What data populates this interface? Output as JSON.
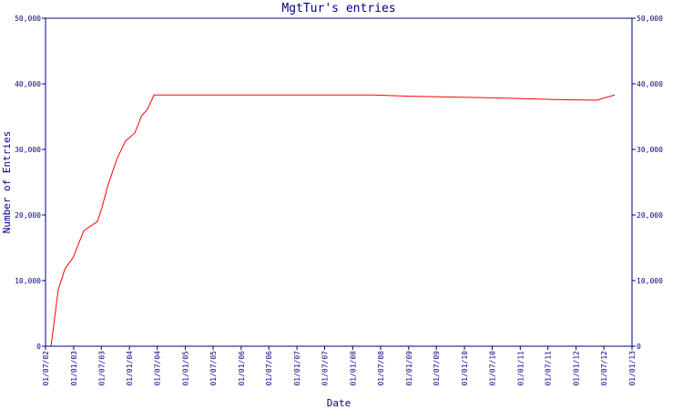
{
  "chart_data": {
    "type": "line",
    "title": "MgtTur's entries",
    "xlabel": "Date",
    "ylabel": "Number of Entries",
    "color": "#ff0000",
    "x": [
      "2002-08-06",
      "2002-09-22",
      "2002-11-05",
      "2002-12-28",
      "2003-03-08",
      "2003-06-05",
      "2003-07-05",
      "2003-08-10",
      "2003-10-10",
      "2003-12-05",
      "2004-02-05",
      "2004-03-20",
      "2004-04-27",
      "2004-06-10",
      "2008-05-15",
      "2009-01-10",
      "2010-04-28",
      "2010-10-28",
      "2011-08-18",
      "2012-05-14",
      "2012-09-10"
    ],
    "values": [
      0,
      8600,
      11800,
      13500,
      17600,
      19000,
      21100,
      24300,
      28500,
      31250,
      32500,
      35100,
      36100,
      38300,
      38300,
      38100,
      37900,
      37800,
      37600,
      37500,
      38300
    ],
    "xlim": [
      "2002-07-01",
      "2013-01-01"
    ],
    "xticks": [
      {
        "value": "2002-07-01",
        "label": "01/07/02"
      },
      {
        "value": "2003-01-01",
        "label": "01/01/03"
      },
      {
        "value": "2003-07-01",
        "label": "01/07/03"
      },
      {
        "value": "2004-01-01",
        "label": "01/01/04"
      },
      {
        "value": "2004-07-01",
        "label": "01/07/04"
      },
      {
        "value": "2005-01-01",
        "label": "01/01/05"
      },
      {
        "value": "2005-07-01",
        "label": "01/07/05"
      },
      {
        "value": "2006-01-01",
        "label": "01/01/06"
      },
      {
        "value": "2006-07-01",
        "label": "01/07/06"
      },
      {
        "value": "2007-01-01",
        "label": "01/01/07"
      },
      {
        "value": "2007-07-01",
        "label": "01/07/07"
      },
      {
        "value": "2008-01-01",
        "label": "01/01/08"
      },
      {
        "value": "2008-07-01",
        "label": "01/07/08"
      },
      {
        "value": "2009-01-01",
        "label": "01/01/09"
      },
      {
        "value": "2009-07-01",
        "label": "01/07/09"
      },
      {
        "value": "2010-01-01",
        "label": "01/01/10"
      },
      {
        "value": "2010-07-01",
        "label": "01/07/10"
      },
      {
        "value": "2011-01-01",
        "label": "01/01/11"
      },
      {
        "value": "2011-07-01",
        "label": "01/07/11"
      },
      {
        "value": "2012-01-01",
        "label": "01/01/12"
      },
      {
        "value": "2012-07-01",
        "label": "01/07/12"
      },
      {
        "value": "2013-01-01",
        "label": "01/01/13"
      }
    ],
    "ylim": [
      0,
      50000
    ],
    "yticks": [
      0,
      {
        "value": 10000,
        "label": "10,000"
      },
      {
        "value": 20000,
        "label": "20,000"
      },
      {
        "value": 30000,
        "label": "30,000"
      },
      {
        "value": 40000,
        "label": "40,000"
      },
      {
        "value": 50000,
        "label": "50,000"
      }
    ],
    "y2lim": [
      0,
      50000
    ],
    "y2ticks": [
      0,
      {
        "value": 10000,
        "label": "10,000"
      },
      {
        "value": 20000,
        "label": "20,000"
      },
      {
        "value": 30000,
        "label": "30,000"
      },
      {
        "value": 40000,
        "label": "40,000"
      },
      {
        "value": 50000,
        "label": "50,000"
      }
    ]
  }
}
